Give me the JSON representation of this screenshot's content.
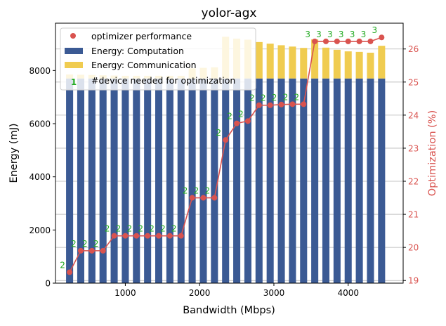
{
  "chart_data": {
    "type": "bar",
    "title": "yolor-agx",
    "xlabel": "Bandwidth (Mbps)",
    "ylabel": "Energy (mJ)",
    "y2label": "Optimization (%)",
    "xlim": [
      60,
      4740
    ],
    "ylim": [
      0,
      9780
    ],
    "y2lim": [
      18.92,
      26.78
    ],
    "x_ticks": [
      1000,
      2000,
      3000,
      4000
    ],
    "y_ticks": [
      0,
      2000,
      4000,
      6000,
      8000
    ],
    "y2_ticks": [
      19,
      20,
      21,
      22,
      23,
      24,
      25,
      26
    ],
    "grid": "y2",
    "legend_position": "top-left",
    "x": [
      250,
      400,
      550,
      700,
      850,
      1000,
      1150,
      1300,
      1450,
      1600,
      1750,
      1900,
      2050,
      2200,
      2350,
      2500,
      2650,
      2800,
      2950,
      3100,
      3250,
      3400,
      3550,
      3700,
      3850,
      4000,
      4150,
      4300,
      4450
    ],
    "series": [
      {
        "name": "Energy: Computation",
        "kind": "bar",
        "axis": "left",
        "color": "#3b5a94",
        "values": [
          7700,
          7700,
          7700,
          7700,
          7700,
          7700,
          7700,
          7700,
          7700,
          7700,
          7700,
          7700,
          7700,
          7700,
          7700,
          7700,
          7700,
          7700,
          7700,
          7700,
          7700,
          7700,
          7700,
          7700,
          7700,
          7700,
          7700,
          7700,
          7700
        ]
      },
      {
        "name": "Energy: Communication",
        "kind": "bar",
        "axis": "left",
        "color": "#f0cc50",
        "values": [
          150,
          140,
          130,
          120,
          110,
          100,
          100,
          100,
          100,
          100,
          100,
          380,
          400,
          420,
          1570,
          1500,
          1460,
          1370,
          1310,
          1250,
          1200,
          1150,
          1470,
          1160,
          1080,
          1020,
          1000,
          970,
          1230
        ]
      },
      {
        "name": "optimizer performance",
        "kind": "line",
        "axis": "right",
        "color": "#d9534f",
        "values": [
          19.25,
          19.9,
          19.9,
          19.9,
          20.35,
          20.35,
          20.35,
          20.35,
          20.35,
          20.35,
          20.35,
          21.5,
          21.5,
          21.5,
          23.25,
          23.75,
          23.82,
          24.3,
          24.3,
          24.32,
          24.33,
          24.33,
          26.23,
          26.23,
          26.23,
          26.23,
          26.23,
          26.23,
          26.35
        ]
      },
      {
        "name": "#device needed for optimization",
        "kind": "labels",
        "color": "#22aa22",
        "values": [
          "2",
          "2",
          "2",
          "2",
          "2",
          "2",
          "2",
          "2",
          "2",
          "2",
          "2",
          "2",
          "2",
          "2",
          "2",
          "2",
          "2",
          "2",
          "2",
          "2",
          "2",
          "2",
          "3",
          "3",
          "3",
          "3",
          "3",
          "3",
          "3"
        ]
      }
    ]
  }
}
